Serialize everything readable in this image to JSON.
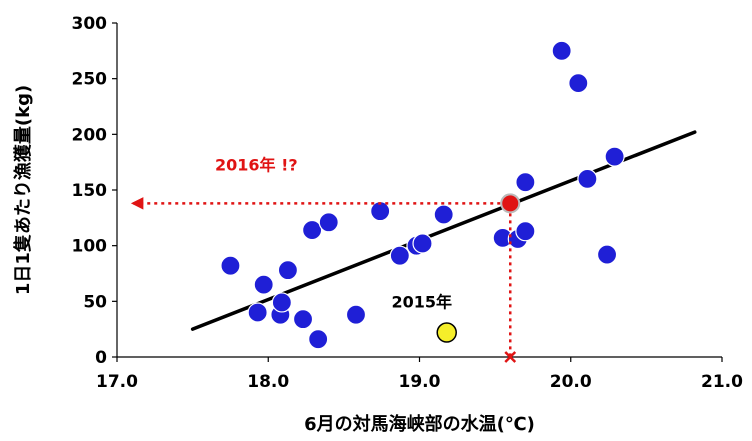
{
  "chart_data": {
    "type": "scatter",
    "title": "",
    "xlabel": "6月の対馬海峡部の水温(℃)",
    "ylabel": "1日1隻あたり漁獲量(kg)",
    "xlim": [
      17.0,
      21.0
    ],
    "ylim": [
      0,
      300
    ],
    "x_ticks": [
      17.0,
      18.0,
      19.0,
      20.0,
      21.0
    ],
    "x_tick_labels": [
      "17.0",
      "18.0",
      "19.0",
      "20.0",
      "21.0"
    ],
    "y_ticks": [
      0,
      50,
      100,
      150,
      200,
      250,
      300
    ],
    "y_tick_labels": [
      "0",
      "50",
      "100",
      "150",
      "200",
      "250",
      "300"
    ],
    "grid": false,
    "legend": "none",
    "series": [
      {
        "color": "#1f1fd6",
        "points": [
          {
            "x": 17.75,
            "y": 82
          },
          {
            "x": 17.93,
            "y": 40
          },
          {
            "x": 17.97,
            "y": 65
          },
          {
            "x": 18.08,
            "y": 38
          },
          {
            "x": 18.09,
            "y": 49
          },
          {
            "x": 18.13,
            "y": 78
          },
          {
            "x": 18.23,
            "y": 34
          },
          {
            "x": 18.29,
            "y": 114
          },
          {
            "x": 18.33,
            "y": 16
          },
          {
            "x": 18.4,
            "y": 121
          },
          {
            "x": 18.58,
            "y": 38
          },
          {
            "x": 18.74,
            "y": 131
          },
          {
            "x": 18.87,
            "y": 91
          },
          {
            "x": 18.98,
            "y": 100
          },
          {
            "x": 19.02,
            "y": 102
          },
          {
            "x": 19.16,
            "y": 128
          },
          {
            "x": 19.55,
            "y": 107
          },
          {
            "x": 19.65,
            "y": 106
          },
          {
            "x": 19.7,
            "y": 113
          },
          {
            "x": 19.7,
            "y": 157
          },
          {
            "x": 19.94,
            "y": 275
          },
          {
            "x": 20.05,
            "y": 246
          },
          {
            "x": 20.11,
            "y": 160
          },
          {
            "x": 20.24,
            "y": 92
          },
          {
            "x": 20.29,
            "y": 180
          }
        ]
      }
    ],
    "trendline": {
      "x": [
        17.5,
        20.82
      ],
      "y": [
        25,
        202
      ]
    },
    "highlight_2015": {
      "label": "2015年",
      "x": 19.18,
      "y": 22,
      "color": "#f5ee2a"
    },
    "prediction_2016": {
      "label": "2016年 !?",
      "x": 19.6,
      "y": 138,
      "color": "#e01414",
      "arrow_end_x": 17.1
    }
  }
}
